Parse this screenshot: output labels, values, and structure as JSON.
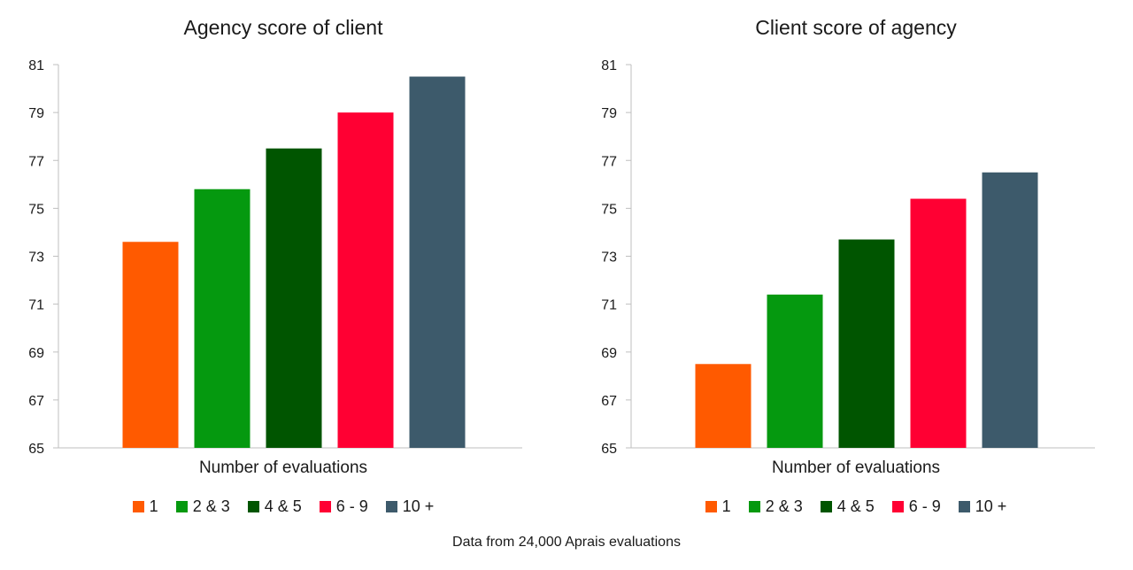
{
  "chart_data": [
    {
      "type": "bar",
      "title": "Agency score of client",
      "xlabel": "Number of evaluations",
      "ylabel": "",
      "ylim": [
        65,
        81
      ],
      "yticks": [
        65,
        67,
        69,
        71,
        73,
        75,
        77,
        79,
        81
      ],
      "grid": false,
      "legend_position": "bottom",
      "categories": [
        "1",
        "2 & 3",
        "4 & 5",
        "6 - 9",
        "10 +"
      ],
      "values": [
        73.6,
        75.8,
        77.5,
        79.0,
        80.5
      ],
      "colors": [
        "#ff5a00",
        "#05990f",
        "#005500",
        "#ff0033",
        "#3d5a6b"
      ]
    },
    {
      "type": "bar",
      "title": "Client score of agency",
      "xlabel": "Number of evaluations",
      "ylabel": "",
      "ylim": [
        65,
        81
      ],
      "yticks": [
        65,
        67,
        69,
        71,
        73,
        75,
        77,
        79,
        81
      ],
      "grid": false,
      "legend_position": "bottom",
      "categories": [
        "1",
        "2 & 3",
        "4 & 5",
        "6 - 9",
        "10 +"
      ],
      "values": [
        68.5,
        71.4,
        73.7,
        75.4,
        76.5
      ],
      "colors": [
        "#ff5a00",
        "#05990f",
        "#005500",
        "#ff0033",
        "#3d5a6b"
      ]
    }
  ],
  "footnote": "Data from 24,000 Aprais evaluations"
}
